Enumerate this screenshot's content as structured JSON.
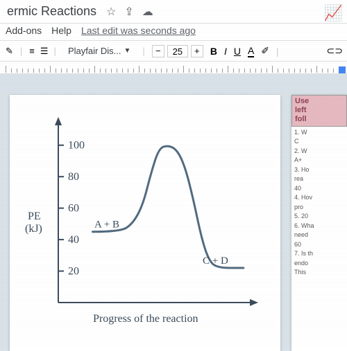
{
  "header": {
    "title": "ermic Reactions",
    "trend_icon": "📈"
  },
  "menu": {
    "addons": "Add-ons",
    "help": "Help",
    "status": "Last edit was seconds ago"
  },
  "toolbar": {
    "font_name": "Playfair Dis...",
    "font_size": "25",
    "minus": "−",
    "plus": "+",
    "bold": "B",
    "italic": "I",
    "underline": "U",
    "color": "A"
  },
  "chart": {
    "type": "line",
    "ylabel_top": "PE",
    "ylabel_bottom": "(kJ)",
    "xlabel": "Progress of the reaction",
    "ylim": [
      0,
      110
    ],
    "ytick_step": 20,
    "yticks": [
      20,
      40,
      60,
      80,
      100
    ],
    "annotations": {
      "reactants": "A + B",
      "products": "C + D"
    },
    "line_color": "#516a7f",
    "tick_color": "#3a4a5a",
    "axis_color": "#3a4a5a",
    "text_color": "#3a4a5a",
    "line_width": 3,
    "tick_fontsize": 16,
    "label_fontsize": 16,
    "points": [
      {
        "x": 60,
        "y": 45
      },
      {
        "x": 108,
        "y": 45
      },
      {
        "x": 130,
        "y": 50
      },
      {
        "x": 148,
        "y": 62
      },
      {
        "x": 162,
        "y": 82
      },
      {
        "x": 176,
        "y": 98
      },
      {
        "x": 192,
        "y": 100
      },
      {
        "x": 208,
        "y": 97
      },
      {
        "x": 222,
        "y": 86
      },
      {
        "x": 236,
        "y": 66
      },
      {
        "x": 250,
        "y": 42
      },
      {
        "x": 262,
        "y": 28
      },
      {
        "x": 276,
        "y": 22
      },
      {
        "x": 324,
        "y": 22
      }
    ]
  },
  "sidepage": {
    "header_lines": [
      "Use",
      "left",
      "foll"
    ],
    "items": [
      "1.  W",
      "    C",
      "2.  W",
      "    A+",
      "3.  Ho",
      "    rea",
      "    40",
      "4.  Hov",
      "    pro",
      "5.  20",
      "6.  Wha",
      "    need",
      "    60",
      "7.  Is th",
      "    endo",
      "    This"
    ]
  }
}
